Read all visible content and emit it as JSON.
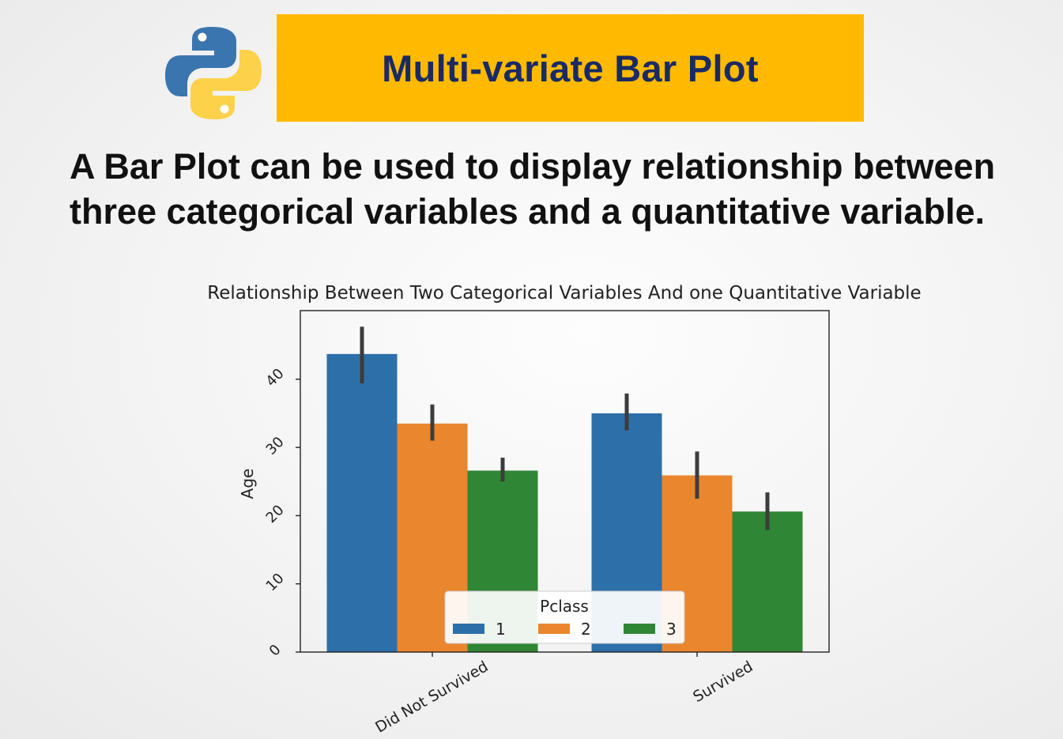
{
  "banner": {
    "title": "Multi-variate Bar Plot"
  },
  "subtitle": {
    "line1": "A Bar Plot can be used to display relationship between",
    "line2": "three categorical variables and a quantitative variable."
  },
  "colors": {
    "banner": "#ffba00",
    "banner_text": "#1a2a63",
    "logo_blue": "#3a75b0",
    "logo_yellow": "#fdd24a"
  },
  "icons": {
    "logo": "python-logo-icon"
  },
  "chart_data": {
    "type": "bar",
    "title": "Relationship Between Two Categorical Variables And one Quantitative Variable",
    "xlabel": "",
    "ylabel": "Age",
    "ylim": [
      0,
      48
    ],
    "yticks": [
      0,
      10,
      20,
      30,
      40
    ],
    "categories": [
      "Did Not Survived",
      "Survived"
    ],
    "legend": {
      "title": "Pclass",
      "position": "lower center",
      "columns": 3
    },
    "series": [
      {
        "name": "1",
        "color": "#2d6fa9",
        "values": [
          43.7,
          35.0
        ],
        "err_low": [
          39.4,
          32.5
        ],
        "err_high": [
          47.7,
          37.9
        ]
      },
      {
        "name": "2",
        "color": "#ea862e",
        "values": [
          33.5,
          25.9
        ],
        "err_low": [
          31.0,
          22.5
        ],
        "err_high": [
          36.3,
          29.4
        ]
      },
      {
        "name": "3",
        "color": "#2f8634",
        "values": [
          26.6,
          20.6
        ],
        "err_low": [
          25.0,
          17.9
        ],
        "err_high": [
          28.5,
          23.4
        ]
      }
    ],
    "errorbar_color": "#3c3c3c",
    "grid": false
  }
}
